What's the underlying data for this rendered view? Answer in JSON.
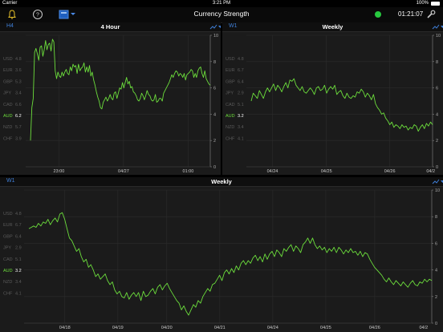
{
  "status": {
    "carrier": "Carrier",
    "time": "3:21 PM",
    "battery": "100%"
  },
  "toolbar": {
    "title": "Currency Strength",
    "clock": "01:21:07",
    "connection_color": "#27c93f"
  },
  "panels": [
    {
      "id": "h4",
      "timeframe": "H4",
      "title": "4 Hour",
      "legend": [
        {
          "code": "USD",
          "value": "4.8",
          "active": false
        },
        {
          "code": "EUR",
          "value": "3.6",
          "active": false
        },
        {
          "code": "GBP",
          "value": "5.3",
          "active": false
        },
        {
          "code": "JPY",
          "value": "3.4",
          "active": false
        },
        {
          "code": "CAD",
          "value": "6.6",
          "active": false
        },
        {
          "code": "AUD",
          "value": "6.2",
          "active": true
        },
        {
          "code": "NZD",
          "value": "5.7",
          "active": false
        },
        {
          "code": "CHF",
          "value": "3.9",
          "active": false
        }
      ],
      "x_labels": [
        "23:00",
        "04/27",
        "01:00"
      ],
      "y_ticks": [
        "10",
        "8",
        "6",
        "4",
        "2",
        "0"
      ]
    },
    {
      "id": "w1a",
      "timeframe": "W1",
      "title": "Weekly",
      "legend": [
        {
          "code": "USD",
          "value": "4.8",
          "active": false
        },
        {
          "code": "EUR",
          "value": "6.7",
          "active": false
        },
        {
          "code": "GBP",
          "value": "6.4",
          "active": false
        },
        {
          "code": "JPY",
          "value": "2.9",
          "active": false
        },
        {
          "code": "CAD",
          "value": "5.1",
          "active": false
        },
        {
          "code": "AUD",
          "value": "3.2",
          "active": true
        },
        {
          "code": "NZD",
          "value": "3.4",
          "active": false
        },
        {
          "code": "CHF",
          "value": "4.1",
          "active": false
        }
      ],
      "x_labels": [
        "04/24",
        "04/25",
        "04/26",
        "04/2"
      ],
      "y_ticks": [
        "10",
        "8",
        "6",
        "4",
        "2",
        "0"
      ]
    },
    {
      "id": "w1b",
      "timeframe": "W1",
      "title": "Weekly",
      "legend": [
        {
          "code": "USD",
          "value": "4.8",
          "active": false
        },
        {
          "code": "EUR",
          "value": "6.7",
          "active": false
        },
        {
          "code": "GBP",
          "value": "6.4",
          "active": false
        },
        {
          "code": "JPY",
          "value": "2.9",
          "active": false
        },
        {
          "code": "CAD",
          "value": "5.1",
          "active": false
        },
        {
          "code": "AUD",
          "value": "3.2",
          "active": true
        },
        {
          "code": "NZD",
          "value": "3.4",
          "active": false
        },
        {
          "code": "CHF",
          "value": "4.1",
          "active": false
        }
      ],
      "x_labels": [
        "04/18",
        "04/19",
        "04/20",
        "04/21",
        "04/24",
        "04/25",
        "04/26",
        "04/2"
      ],
      "y_ticks": [
        "10",
        "8",
        "6",
        "4",
        "2",
        "0"
      ]
    }
  ],
  "series_color": "#6cde3c",
  "aud_h4": [
    2.0,
    4.5,
    5.2,
    8.7,
    9.0,
    8.6,
    8.1,
    9.1,
    9.2,
    8.4,
    8.9,
    9.6,
    8.9,
    9.3,
    9.4,
    8.8,
    9.7,
    9.5,
    7.3,
    6.7,
    7.2,
    6.9,
    6.8,
    7.2,
    6.9,
    7.2,
    7.4,
    7.1,
    7.0,
    7.6,
    7.3,
    7.8,
    7.6,
    7.7,
    7.1,
    7.8,
    7.3,
    7.5,
    7.6,
    7.9,
    7.2,
    7.6,
    7.2,
    7.7,
    6.9,
    7.2,
    6.6,
    6.2,
    5.7,
    5.3,
    5.0,
    4.5,
    4.4,
    4.9,
    5.1,
    5.3,
    5.0,
    5.2,
    5.5,
    5.2,
    5.1,
    5.6,
    5.7,
    5.2,
    5.6,
    6.0,
    5.9,
    6.4,
    6.0,
    6.4,
    6.8,
    6.3,
    6.5,
    6.0,
    6.1,
    5.7,
    5.6,
    5.4,
    5.1,
    5.0,
    5.2,
    5.6,
    5.4,
    5.1,
    5.4,
    5.8,
    5.5,
    5.4,
    5.1,
    5.0,
    5.1,
    5.5,
    4.9,
    5.0,
    5.2,
    5.2,
    5.0,
    5.6,
    5.8,
    6.0,
    6.2,
    6.4,
    6.7,
    7.0,
    6.8,
    7.1,
    7.3,
    7.2,
    6.9,
    7.1,
    7.0,
    6.8,
    7.1,
    6.6,
    7.0,
    7.1,
    7.2,
    7.4,
    7.3,
    6.8,
    7.1,
    6.8,
    7.3,
    7.5,
    7.6,
    7.1,
    6.8,
    7.3,
    6.7,
    6.5,
    6.3,
    6.2
  ],
  "aud_w1_short": [
    5.0,
    5.6,
    5.4,
    5.2,
    5.8,
    5.5,
    5.2,
    5.7,
    6.0,
    5.7,
    6.0,
    6.3,
    5.8,
    6.2,
    6.0,
    5.7,
    6.1,
    6.4,
    6.0,
    6.6,
    6.5,
    6.7,
    6.2,
    6.0,
    5.8,
    6.1,
    5.7,
    5.6,
    5.8,
    6.0,
    5.8,
    5.5,
    6.0,
    6.1,
    5.8,
    5.9,
    6.2,
    5.6,
    5.9,
    6.1,
    5.9,
    6.2,
    5.5,
    5.7,
    5.8,
    5.4,
    5.2,
    5.6,
    5.3,
    5.2,
    5.4,
    5.3,
    5.7,
    5.6,
    5.9,
    5.7,
    5.3,
    5.6,
    5.4,
    5.1,
    5.5,
    4.8,
    4.5,
    4.3,
    4.0,
    4.1,
    3.7,
    3.5,
    3.2,
    3.4,
    3.0,
    3.2,
    3.1,
    2.9,
    3.2,
    3.0,
    3.1,
    2.8,
    3.0,
    2.9,
    3.2,
    3.1,
    2.7,
    3.0,
    3.2,
    2.9,
    3.3,
    3.1,
    3.4,
    3.2
  ],
  "aud_w1_long": [
    7.1,
    7.2,
    7.3,
    7.2,
    7.5,
    7.3,
    7.6,
    7.5,
    7.8,
    7.4,
    7.7,
    7.9,
    7.6,
    8.2,
    8.3,
    7.8,
    7.1,
    6.4,
    6.2,
    5.8,
    5.4,
    5.6,
    5.0,
    4.6,
    4.8,
    4.2,
    4.4,
    4.0,
    3.5,
    3.7,
    3.3,
    3.5,
    3.7,
    3.2,
    2.9,
    3.1,
    2.5,
    2.2,
    2.4,
    2.0,
    1.9,
    2.3,
    1.8,
    2.1,
    2.3,
    2.0,
    2.3,
    1.7,
    2.4,
    2.0,
    2.1,
    2.4,
    2.6,
    2.2,
    2.7,
    2.9,
    2.5,
    2.8,
    3.0,
    2.6,
    2.3,
    2.0,
    1.7,
    1.5,
    1.0,
    1.3,
    0.9,
    0.6,
    1.0,
    1.4,
    1.2,
    1.7,
    1.5,
    2.0,
    2.3,
    2.6,
    2.4,
    2.9,
    3.0,
    3.3,
    3.6,
    3.2,
    3.8,
    4.0,
    3.7,
    4.1,
    3.8,
    4.3,
    4.0,
    4.5,
    4.7,
    4.4,
    4.7,
    4.5,
    4.9,
    5.1,
    4.7,
    5.0,
    4.6,
    5.2,
    4.8,
    5.2,
    5.4,
    5.0,
    5.5,
    5.3,
    5.0,
    5.6,
    5.4,
    5.7,
    5.9,
    5.4,
    5.8,
    5.6,
    5.3,
    5.9,
    6.1,
    6.4,
    6.0,
    6.4,
    5.9,
    5.6,
    5.8,
    5.5,
    5.7,
    5.3,
    5.6,
    5.4,
    5.7,
    5.3,
    5.7,
    5.5,
    5.2,
    5.5,
    5.3,
    5.6,
    5.3,
    5.4,
    5.1,
    5.4,
    5.0,
    5.3,
    5.2,
    4.8,
    4.5,
    4.2,
    4.0,
    3.8,
    3.6,
    3.3,
    3.1,
    3.4,
    3.1,
    2.9,
    3.2,
    3.0,
    2.8,
    3.1,
    2.9,
    2.7,
    3.0,
    3.2,
    2.9,
    2.8,
    3.1,
    3.0,
    3.3,
    3.1,
    3.3,
    3.2
  ]
}
